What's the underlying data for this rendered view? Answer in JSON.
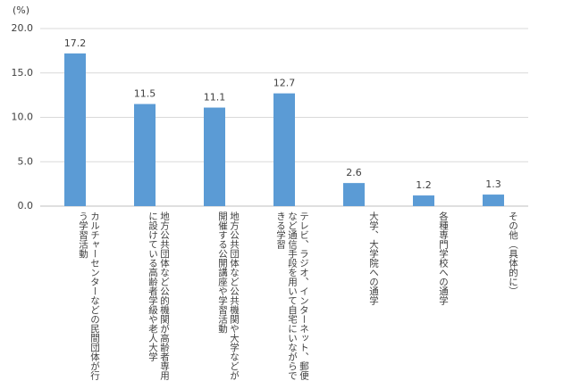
{
  "chart_data": {
    "type": "bar",
    "y_label": "(%)",
    "categories": [
      "カルチャーセンターなどの民間団体が行う学習活動",
      "地方公共団体など公的機関が高齢者専用に設けている高齢者学級や老人大学",
      "地方公共団体など公共機関や大学などが開催する公開講座や学習活動",
      "テレビ、ラジオ、インターネット、郵便など通信手段を用いて自宅にいながらできる学習",
      "大学、大学院への通学",
      "各種専門学校への通学",
      "その他（具体的に）"
    ],
    "values": [
      17.2,
      11.5,
      11.1,
      12.7,
      2.6,
      1.2,
      1.3
    ],
    "color": "#5b9bd5",
    "ylim": [
      0,
      20
    ],
    "yticks": [
      {
        "value": 0,
        "label": "0.0"
      },
      {
        "value": 5,
        "label": "5.0"
      },
      {
        "value": 10,
        "label": "10.0"
      },
      {
        "value": 15,
        "label": "15.0"
      },
      {
        "value": 20,
        "label": "20.0"
      }
    ],
    "grid": true
  }
}
